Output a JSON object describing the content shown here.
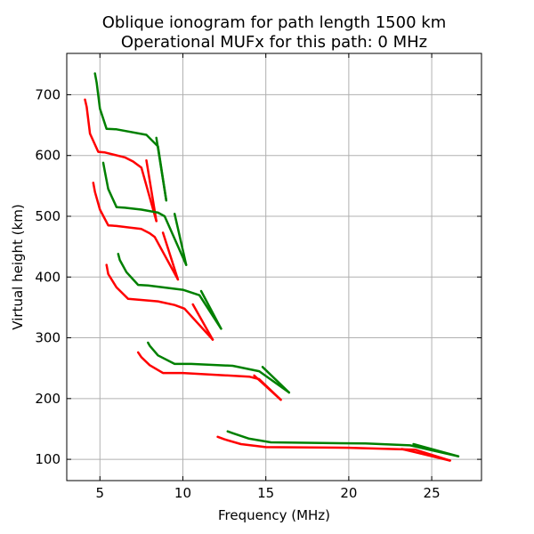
{
  "chart_data": {
    "type": "line",
    "title_line1": "Oblique ionogram for path length 1500 km",
    "title_line2": "Operational MUFx for this path: 0 MHz",
    "xlabel": "Frequency (MHz)",
    "ylabel": "Virtual height (km)",
    "xlim": [
      3,
      28
    ],
    "ylim": [
      65,
      768
    ],
    "xticks": [
      5,
      10,
      15,
      20,
      25
    ],
    "yticks": [
      100,
      200,
      300,
      400,
      500,
      600,
      700
    ],
    "grid": true,
    "colors": {
      "o_mode": "#ff0000",
      "x_mode": "#008000"
    },
    "series": [
      {
        "color": "#ff0000",
        "points": [
          [
            12.1,
            137
          ],
          [
            12.5,
            133
          ],
          [
            13.5,
            125
          ],
          [
            15,
            120
          ],
          [
            20,
            119
          ],
          [
            24,
            116
          ],
          [
            26.1,
            98
          ]
        ]
      },
      {
        "color": "#ff0000",
        "points": [
          [
            23.2,
            117
          ],
          [
            26.1,
            98
          ]
        ]
      },
      {
        "color": "#ff0000",
        "points": [
          [
            7.3,
            276
          ],
          [
            7.5,
            268
          ],
          [
            8,
            255
          ],
          [
            8.8,
            242
          ],
          [
            10,
            242
          ],
          [
            14,
            236
          ],
          [
            14.6,
            232
          ],
          [
            15.9,
            198
          ]
        ]
      },
      {
        "color": "#ff0000",
        "points": [
          [
            14.3,
            238
          ],
          [
            15.9,
            198
          ]
        ]
      },
      {
        "color": "#ff0000",
        "points": [
          [
            5.4,
            420
          ],
          [
            5.5,
            405
          ],
          [
            6,
            383
          ],
          [
            6.7,
            364
          ],
          [
            8.5,
            360
          ],
          [
            9.5,
            354
          ],
          [
            10.1,
            348
          ],
          [
            11.8,
            297
          ]
        ]
      },
      {
        "color": "#ff0000",
        "points": [
          [
            10.6,
            355
          ],
          [
            11.8,
            297
          ]
        ]
      },
      {
        "color": "#ff0000",
        "points": [
          [
            4.6,
            555
          ],
          [
            4.7,
            540
          ],
          [
            5,
            511
          ],
          [
            5.5,
            485
          ],
          [
            6,
            484
          ],
          [
            7.5,
            479
          ],
          [
            8,
            472
          ],
          [
            8.3,
            466
          ],
          [
            9.7,
            396
          ]
        ]
      },
      {
        "color": "#ff0000",
        "points": [
          [
            8.8,
            473
          ],
          [
            9.7,
            396
          ]
        ]
      },
      {
        "color": "#ff0000",
        "points": [
          [
            4.1,
            692
          ],
          [
            4.2,
            680
          ],
          [
            4.4,
            636
          ],
          [
            4.9,
            606
          ],
          [
            5.3,
            605
          ],
          [
            6.5,
            597
          ],
          [
            7,
            590
          ],
          [
            7.5,
            580
          ],
          [
            8.4,
            492
          ]
        ]
      },
      {
        "color": "#ff0000",
        "points": [
          [
            7.8,
            592
          ],
          [
            8.4,
            492
          ]
        ]
      },
      {
        "color": "#008000",
        "points": [
          [
            12.7,
            146
          ],
          [
            13,
            143
          ],
          [
            14,
            134
          ],
          [
            15.3,
            128
          ],
          [
            21,
            126
          ],
          [
            23.7,
            123
          ],
          [
            26.6,
            105
          ]
        ]
      },
      {
        "color": "#008000",
        "points": [
          [
            23.9,
            125
          ],
          [
            26.6,
            105
          ]
        ]
      },
      {
        "color": "#008000",
        "points": [
          [
            7.9,
            292
          ],
          [
            8,
            287
          ],
          [
            8.5,
            271
          ],
          [
            9.5,
            257
          ],
          [
            10.5,
            257
          ],
          [
            13,
            254
          ],
          [
            14.6,
            245
          ],
          [
            16.4,
            210
          ]
        ]
      },
      {
        "color": "#008000",
        "points": [
          [
            14.8,
            252
          ],
          [
            16.4,
            210
          ]
        ]
      },
      {
        "color": "#008000",
        "points": [
          [
            6.1,
            438
          ],
          [
            6.2,
            428
          ],
          [
            6.6,
            408
          ],
          [
            7.3,
            387
          ],
          [
            7.9,
            386
          ],
          [
            10,
            379
          ],
          [
            11,
            370
          ],
          [
            12.3,
            315
          ]
        ]
      },
      {
        "color": "#008000",
        "points": [
          [
            11.1,
            377
          ],
          [
            12.3,
            315
          ]
        ]
      },
      {
        "color": "#008000",
        "points": [
          [
            5.2,
            588
          ],
          [
            5.3,
            573
          ],
          [
            5.5,
            545
          ],
          [
            6,
            515
          ],
          [
            6.5,
            514
          ],
          [
            7.5,
            511
          ],
          [
            8.5,
            506
          ],
          [
            8.9,
            500
          ],
          [
            10.2,
            420
          ]
        ]
      },
      {
        "color": "#008000",
        "points": [
          [
            9.5,
            504
          ],
          [
            10.2,
            420
          ]
        ]
      },
      {
        "color": "#008000",
        "points": [
          [
            4.7,
            735
          ],
          [
            4.8,
            720
          ],
          [
            5,
            677
          ],
          [
            5.4,
            644
          ],
          [
            6,
            643
          ],
          [
            7.8,
            634
          ],
          [
            8.5,
            615
          ],
          [
            9,
            526
          ]
        ]
      },
      {
        "color": "#008000",
        "points": [
          [
            8.4,
            629
          ],
          [
            9,
            526
          ]
        ]
      }
    ]
  }
}
